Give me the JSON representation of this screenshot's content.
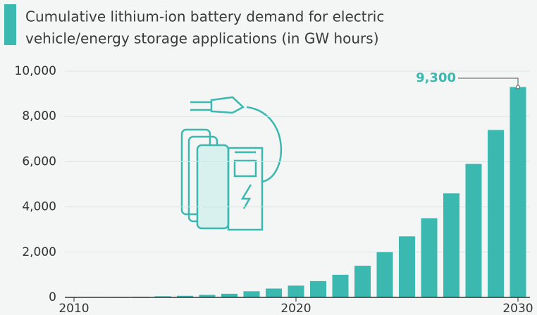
{
  "chart_data": {
    "type": "bar",
    "title": "Cumulative lithium-ion battery demand for electric",
    "subtitle": "vehicle/energy storage applications (in GW hours)",
    "x": [
      2010,
      2011,
      2012,
      2013,
      2014,
      2015,
      2016,
      2017,
      2018,
      2019,
      2020,
      2021,
      2022,
      2023,
      2024,
      2025,
      2026,
      2027,
      2028,
      2029,
      2030
    ],
    "values": [
      5,
      10,
      20,
      30,
      50,
      70,
      110,
      160,
      270,
      390,
      520,
      720,
      1000,
      1400,
      2000,
      2700,
      3500,
      4600,
      5900,
      7400,
      9300
    ],
    "value_labels": [
      null,
      null,
      null,
      null,
      null,
      null,
      null,
      null,
      null,
      null,
      null,
      null,
      null,
      null,
      null,
      null,
      null,
      null,
      null,
      null,
      "9,300"
    ],
    "color": "#3bb8b0",
    "xlim": [
      2010,
      2030
    ],
    "xticks": [
      2010,
      2020,
      2030
    ],
    "ylim": [
      0,
      10000
    ],
    "yticks": [
      0,
      {
        "value": 2000,
        "label": "2,000"
      },
      {
        "value": 4000,
        "label": "4,000"
      },
      {
        "value": 6000,
        "label": "6,000"
      },
      {
        "value": 8000,
        "label": "8,000"
      },
      {
        "value": 10000,
        "label": "10,000"
      }
    ],
    "grid": true
  }
}
